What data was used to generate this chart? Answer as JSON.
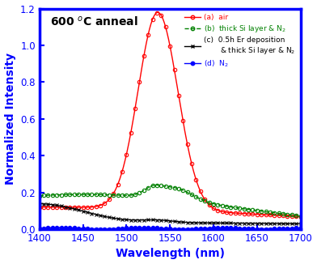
{
  "title": "600 $^o$C anneal",
  "xlabel": "Wavelength (nm)",
  "ylabel": "Normalized Intensity",
  "xlim": [
    1400,
    1700
  ],
  "ylim": [
    0,
    1.2
  ],
  "yticks": [
    0,
    0.2,
    0.4,
    0.6,
    0.8,
    1.0,
    1.2
  ],
  "xticks": [
    1400,
    1450,
    1500,
    1550,
    1600,
    1650,
    1700
  ],
  "border_color": "blue",
  "series_a_color": "red",
  "series_b_color": "green",
  "series_c_color": "black",
  "series_d_color": "blue",
  "legend_a": "(a)",
  "legend_a_label": "air",
  "legend_b": "(b)",
  "legend_b_label": "thick Si layer & N$_2$",
  "legend_c": "(c)",
  "legend_c_label": "0.5h Er deposition\n& thick Si layer & N$_2$",
  "legend_d": "(d)",
  "legend_d_label": "N$_2$"
}
